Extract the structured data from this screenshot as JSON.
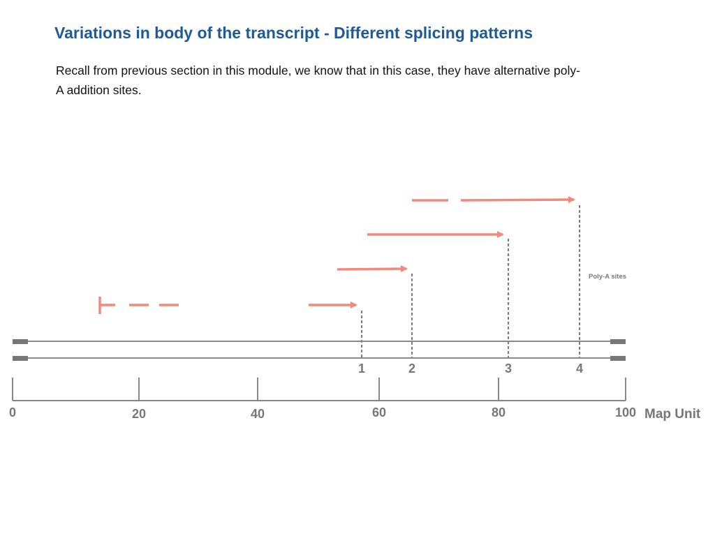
{
  "slide": {
    "title": "Variations in body of the transcript - Different splicing patterns",
    "text": "Recall from previous section in this module, we know that in this case, they have alternative poly-A addition sites."
  },
  "diagram": {
    "polya_label": "Poly-A sites",
    "site_labels": [
      "1",
      "2",
      "3",
      "4"
    ],
    "scale_ticks": [
      "0",
      "20",
      "40",
      "60",
      "80",
      "100"
    ],
    "scale_unit": "Map Unit",
    "colors": {
      "arrow": "#f08a7e",
      "line": "#888888",
      "text": "#777777",
      "title": "#1f5a96"
    }
  }
}
